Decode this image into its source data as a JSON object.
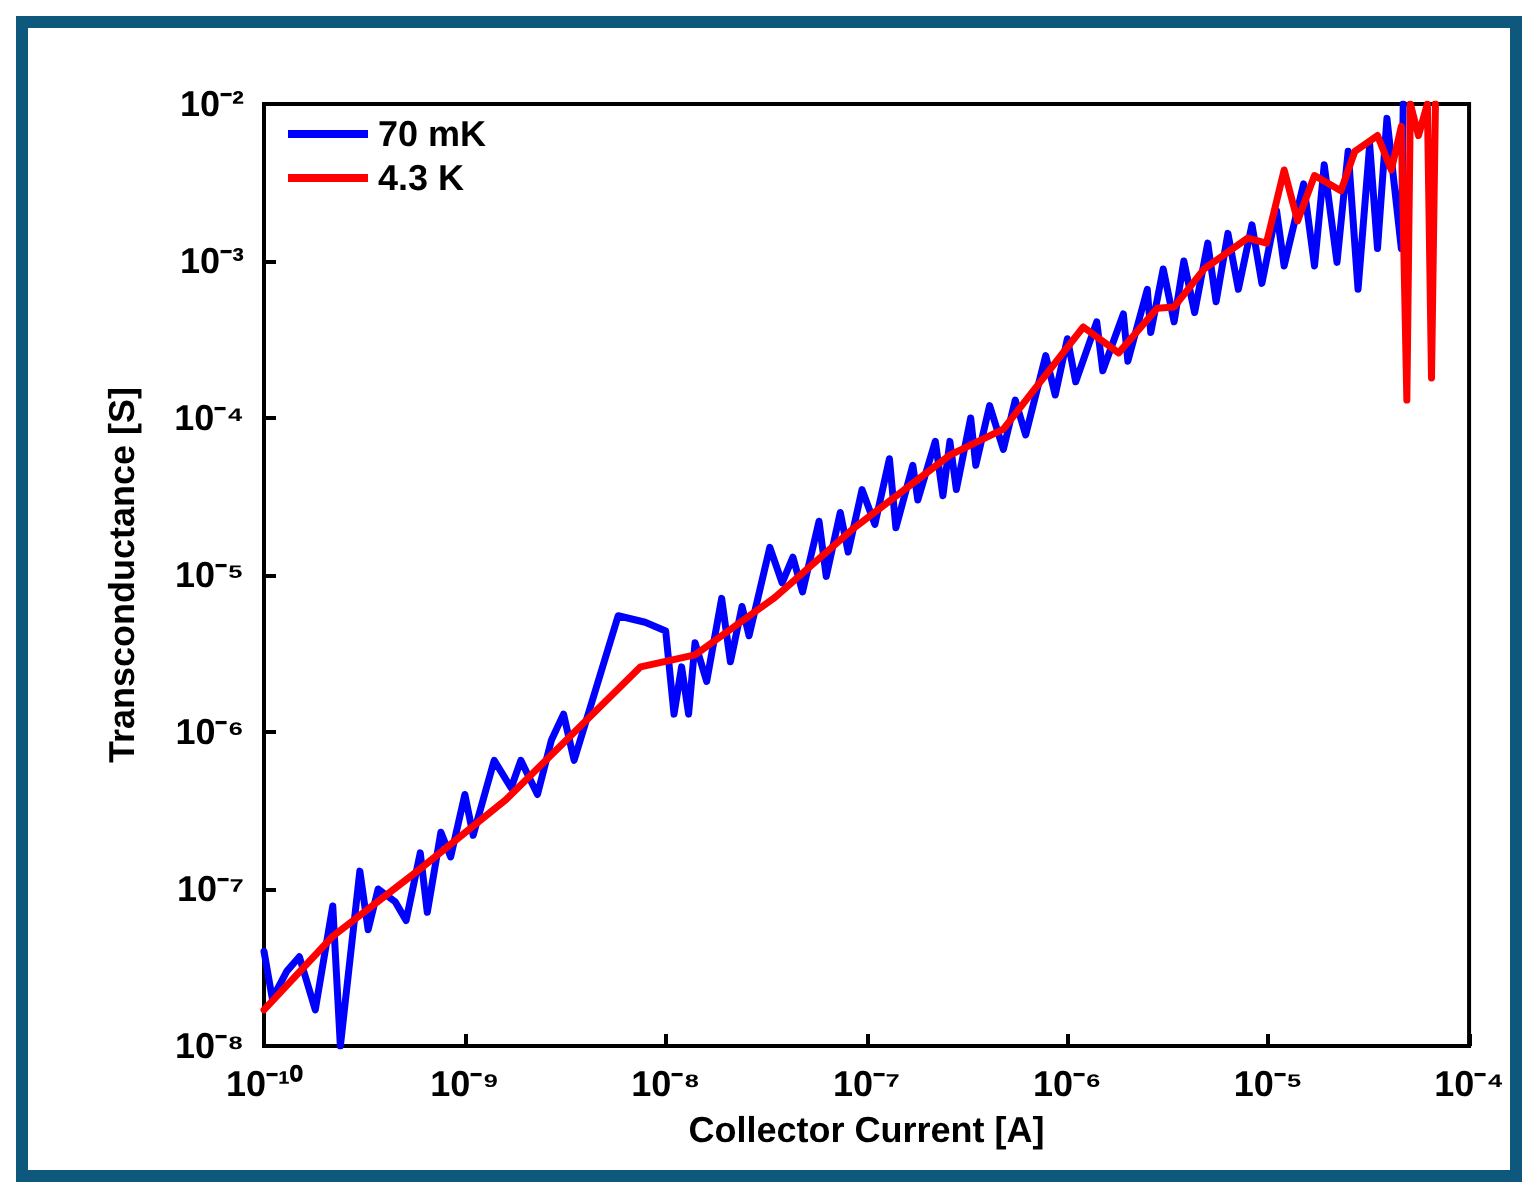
{
  "chart_data": {
    "type": "line",
    "xlabel": "Collector Current [A]",
    "ylabel": "Transconductance [S]",
    "xlim": [
      1e-10,
      0.0001
    ],
    "ylim": [
      1e-08,
      0.01
    ],
    "log": "xy",
    "grid": false,
    "legend": "top left",
    "marker": "none",
    "line_style": "solid",
    "xticks": [
      {
        "value": 1e-10,
        "label": "10⁻¹⁰"
      },
      {
        "value": 1e-09,
        "label": "10⁻⁹"
      },
      {
        "value": 1e-08,
        "label": "10⁻⁸"
      },
      {
        "value": 1e-07,
        "label": "10⁻⁷"
      },
      {
        "value": 1e-06,
        "label": "10⁻⁶"
      },
      {
        "value": 1e-05,
        "label": "10⁻⁵"
      },
      {
        "value": 0.0001,
        "label": "10⁻⁴"
      }
    ],
    "yticks": [
      {
        "value": 1e-08,
        "label": "10⁻⁸"
      },
      {
        "value": 1e-07,
        "label": "10⁻⁷"
      },
      {
        "value": 1e-06,
        "label": "10⁻⁶"
      },
      {
        "value": 1e-05,
        "label": "10⁻⁵"
      },
      {
        "value": 0.0001,
        "label": "10⁻⁴"
      },
      {
        "value": 0.001,
        "label": "10⁻³"
      },
      {
        "value": 0.01,
        "label": "10⁻²"
      }
    ],
    "series": [
      {
        "name": "70 mK",
        "color": "#0000ff",
        "x": [
          1e-10,
          1.1e-10,
          1.3e-10,
          1.5e-10,
          1.8e-10,
          2.2e-10,
          2.4e-10,
          3e-10,
          3.3e-10,
          3.7e-10,
          4.5e-10,
          5.1e-10,
          6e-10,
          6.5e-10,
          7.6e-10,
          8.5e-10,
          1e-09,
          1.1e-09,
          1.4e-09,
          1.7e-09,
          1.9e-09,
          2.3e-09,
          2.7e-09,
          3.1e-09,
          3.5e-09,
          5.8e-09,
          7.9e-09,
          1e-08,
          1.1e-08,
          1.2e-08,
          1.3e-08,
          1.4e-08,
          1.6e-08,
          1.9e-08,
          2.1e-08,
          2.4e-08,
          2.6e-08,
          3.3e-08,
          3.8e-08,
          4.3e-08,
          4.8e-08,
          5.8e-08,
          6.3e-08,
          7.4e-08,
          8.1e-08,
          9.5e-08,
          1.1e-07,
          1.3e-07,
          1.4e-07,
          1.7e-07,
          1.8e-07,
          2.2e-07,
          2.4e-07,
          2.6e-07,
          2.8e-07,
          3.3e-07,
          3.5e-07,
          4.1e-07,
          4.8e-07,
          5.5e-07,
          6.2e-07,
          7.8e-07,
          8.7e-07,
          1e-06,
          1.1e-06,
          1.4e-06,
          1.5e-06,
          1.9e-06,
          2e-06,
          2.5e-06,
          2.6e-06,
          3e-06,
          3.4e-06,
          3.8e-06,
          4.3e-06,
          5e-06,
          5.5e-06,
          6.3e-06,
          7.1e-06,
          8.3e-06,
          9.3e-06,
          1.1e-05,
          1.2e-05,
          1.5e-05,
          1.7e-05,
          1.9e-05,
          2.2e-05,
          2.5e-05,
          2.8e-05,
          3.2e-05,
          3.5e-05,
          3.9e-05,
          4.6e-05,
          4.7e-05
        ],
        "values": [
          4e-08,
          2e-08,
          3e-08,
          3.7e-08,
          1.7e-08,
          7.8e-08,
          1e-08,
          1.3e-07,
          5.5e-08,
          1e-07,
          8.3e-08,
          6.3e-08,
          1.7e-07,
          7.1e-08,
          2.3e-07,
          1.6e-07,
          4e-07,
          2.2e-07,
          6.6e-07,
          4.4e-07,
          6.6e-07,
          4e-07,
          8.9e-07,
          1.3e-06,
          6.6e-07,
          5.5e-06,
          5e-06,
          4.4e-06,
          1.3e-06,
          2.6e-06,
          1.3e-06,
          3.7e-06,
          2.1e-06,
          7.1e-06,
          2.8e-06,
          6.3e-06,
          4.1e-06,
          1.5e-05,
          8.9e-06,
          1.3e-05,
          7.8e-06,
          2.2e-05,
          9.8e-06,
          2.5e-05,
          1.4e-05,
          3.5e-05,
          2.1e-05,
          5.5e-05,
          2e-05,
          5e-05,
          3e-05,
          7.1e-05,
          3.2e-05,
          7.1e-05,
          3.5e-05,
          0.0001,
          5e-05,
          0.00012,
          6.3e-05,
          0.00013,
          7.8e-05,
          0.00025,
          0.00014,
          0.00032,
          0.00017,
          0.00041,
          0.0002,
          0.00046,
          0.00023,
          0.00066,
          0.00035,
          0.00089,
          0.00041,
          0.001,
          0.00047,
          0.0013,
          0.00055,
          0.0015,
          0.00066,
          0.0017,
          0.00072,
          0.0021,
          0.00093,
          0.0031,
          0.00093,
          0.0041,
          0.00098,
          0.005,
          0.00066,
          0.0055,
          0.0012,
          0.0081,
          0.0012,
          0.01
        ]
      },
      {
        "name": "4.3 K",
        "color": "#ff0000",
        "x": [
          1e-10,
          2.2e-10,
          5.8e-10,
          1.6e-09,
          7.5e-09,
          1.4e-08,
          3.5e-08,
          8.7e-08,
          2.6e-07,
          4.8e-07,
          1.2e-06,
          1.8e-06,
          2.8e-06,
          3.4e-06,
          4.8e-06,
          7.9e-06,
          9.8e-06,
          1.2e-05,
          1.4e-05,
          1.7e-05,
          2.3e-05,
          2.7e-05,
          3.5e-05,
          4.1e-05,
          4.6e-05,
          4.9e-05,
          5.1e-05,
          5.6e-05,
          6.2e-05,
          6.5e-05,
          6.8e-05
        ],
        "values": [
          1.7e-08,
          5e-08,
          1.3e-07,
          3.7e-07,
          2.6e-06,
          3.1e-06,
          7.2e-06,
          2e-05,
          5.8e-05,
          8.5e-05,
          0.00038,
          0.00026,
          0.0005,
          0.00051,
          0.00089,
          0.0014,
          0.0013,
          0.0038,
          0.0018,
          0.0035,
          0.0028,
          0.005,
          0.0063,
          0.0038,
          0.0072,
          0.00013,
          0.01,
          0.0063,
          0.01,
          0.00018,
          0.01
        ]
      }
    ]
  }
}
